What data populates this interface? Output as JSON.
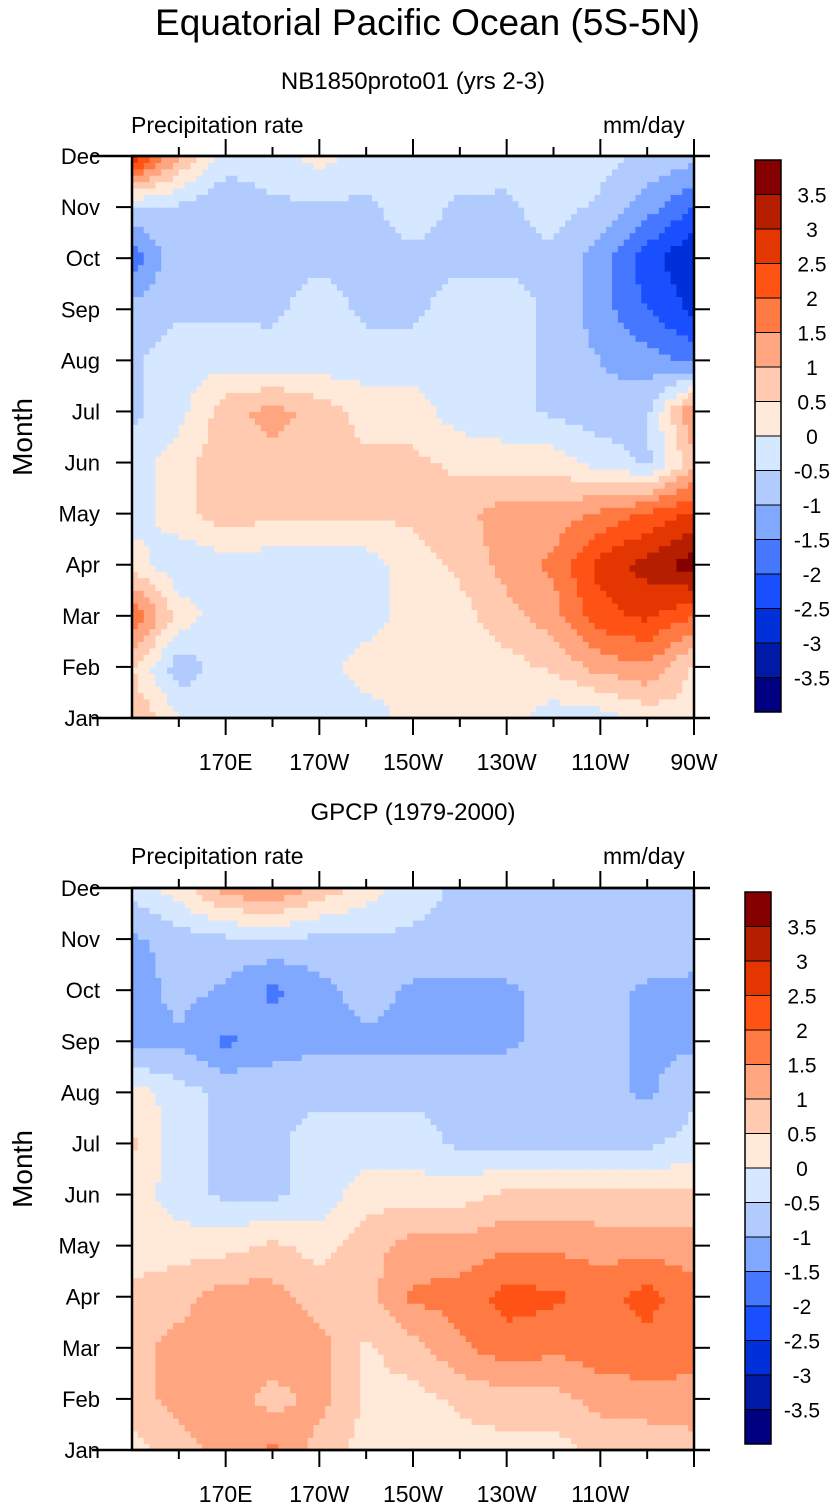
{
  "title": "Equatorial Pacific Ocean (5S-5N)",
  "chart_data": [
    {
      "type": "heatmap",
      "subtitle": "NB1850proto01 (yrs 2-3)",
      "left_label": "Precipitation rate",
      "right_label": "mm/day",
      "ylabel": "Month",
      "xlabel": "",
      "x_tick_labels": [
        "170E",
        "170W",
        "150W",
        "130W",
        "110W",
        "90W"
      ],
      "x_range_deg_east": [
        150,
        270
      ],
      "y_tick_labels": [
        "Jan",
        "Feb",
        "Mar",
        "Apr",
        "May",
        "Jun",
        "Jul",
        "Aug",
        "Sep",
        "Oct",
        "Nov",
        "Dec"
      ],
      "x_grid_lon_deg_east": [
        150,
        160,
        170,
        180,
        190,
        200,
        210,
        220,
        230,
        240,
        250,
        260,
        270
      ],
      "values": [
        [
          1.0,
          0.0,
          -0.3,
          -0.3,
          -0.3,
          -0.3,
          0.2,
          0.2,
          0.2,
          -0.3,
          -0.3,
          0.2,
          0.3
        ],
        [
          0.5,
          -0.8,
          -0.3,
          -0.3,
          -0.3,
          0.3,
          0.3,
          0.3,
          0.3,
          0.6,
          1.2,
          1.4,
          0.4
        ],
        [
          2.0,
          0.3,
          -0.3,
          -0.3,
          -0.3,
          -0.3,
          0.3,
          0.3,
          0.8,
          1.3,
          2.3,
          2.6,
          2.0
        ],
        [
          0.3,
          -0.4,
          -0.3,
          -0.3,
          -0.3,
          -0.3,
          0.3,
          0.6,
          1.2,
          1.6,
          2.7,
          3.2,
          3.8
        ],
        [
          -0.3,
          0.3,
          0.8,
          0.6,
          0.6,
          0.6,
          0.6,
          0.8,
          1.3,
          1.2,
          1.6,
          2.1,
          2.6
        ],
        [
          -0.3,
          0.3,
          0.8,
          0.8,
          0.6,
          0.6,
          0.6,
          0.4,
          0.2,
          0.3,
          -0.2,
          -0.6,
          0.8
        ],
        [
          -0.6,
          -0.2,
          0.8,
          1.2,
          0.8,
          0.3,
          0.3,
          -0.3,
          -0.3,
          -0.6,
          -0.8,
          -0.6,
          1.6
        ],
        [
          -0.6,
          -0.2,
          -0.2,
          -0.3,
          -0.3,
          -0.3,
          -0.3,
          -0.3,
          -0.3,
          -0.6,
          -1.0,
          -1.3,
          -1.6
        ],
        [
          -0.8,
          -0.6,
          -0.6,
          -0.6,
          -0.3,
          -0.6,
          -0.6,
          -0.3,
          -0.3,
          -0.6,
          -1.3,
          -2.0,
          -2.6
        ],
        [
          -1.8,
          -0.6,
          -0.6,
          -0.6,
          -0.6,
          -0.6,
          -0.6,
          -0.6,
          -0.6,
          -0.6,
          -1.3,
          -2.3,
          -3.0
        ],
        [
          -0.6,
          -0.6,
          -1.0,
          -0.6,
          -0.6,
          -0.6,
          -0.3,
          -0.6,
          -0.6,
          -0.3,
          -0.6,
          -1.3,
          -2.0
        ],
        [
          3.0,
          1.0,
          -0.2,
          -0.2,
          0.2,
          -0.2,
          -0.2,
          -0.2,
          -0.3,
          -0.3,
          -0.3,
          -0.6,
          -0.8
        ]
      ]
    },
    {
      "type": "heatmap",
      "subtitle": "GPCP (1979-2000)",
      "left_label": "Precipitation rate",
      "right_label": "mm/day",
      "ylabel": "Month",
      "xlabel": "",
      "x_tick_labels": [
        "170E",
        "170W",
        "150W",
        "130W",
        "110W"
      ],
      "x_range_deg_east": [
        150,
        270
      ],
      "y_tick_labels": [
        "Jan",
        "Feb",
        "Mar",
        "Apr",
        "May",
        "Jun",
        "Jul",
        "Aug",
        "Sep",
        "Oct",
        "Nov",
        "Dec"
      ],
      "x_grid_lon_deg_east": [
        150,
        160,
        170,
        180,
        190,
        200,
        210,
        220,
        230,
        240,
        250,
        260,
        270
      ],
      "values": [
        [
          0.3,
          0.8,
          1.2,
          1.6,
          0.8,
          0.3,
          0.3,
          0.3,
          0.3,
          0.3,
          0.6,
          0.6,
          0.7
        ],
        [
          0.8,
          1.2,
          1.3,
          0.8,
          1.2,
          0.4,
          0.3,
          0.6,
          0.8,
          0.8,
          1.2,
          1.3,
          1.4
        ],
        [
          0.8,
          1.2,
          1.3,
          1.3,
          1.2,
          0.4,
          0.8,
          1.4,
          1.8,
          1.6,
          1.8,
          1.8,
          1.6
        ],
        [
          0.6,
          0.8,
          1.3,
          1.2,
          0.8,
          0.8,
          1.6,
          1.7,
          2.2,
          2.1,
          1.8,
          2.2,
          1.7
        ],
        [
          0.3,
          0.3,
          0.3,
          0.6,
          0.3,
          0.8,
          1.2,
          1.2,
          1.4,
          1.4,
          1.3,
          1.3,
          1.2
        ],
        [
          0.3,
          -0.3,
          -0.6,
          -0.6,
          -0.3,
          0.3,
          0.3,
          0.3,
          0.6,
          0.6,
          0.6,
          0.6,
          0.6
        ],
        [
          0.6,
          -0.3,
          -0.6,
          -0.6,
          -0.3,
          -0.3,
          -0.3,
          -0.6,
          -0.6,
          -0.6,
          -0.6,
          -0.6,
          -0.3
        ],
        [
          0.3,
          -0.3,
          -0.6,
          -0.6,
          -0.6,
          -0.6,
          -0.6,
          -0.6,
          -0.6,
          -0.6,
          -0.8,
          -1.1,
          -0.6
        ],
        [
          -1.3,
          -1.1,
          -1.6,
          -1.3,
          -1.1,
          -1.1,
          -1.1,
          -1.1,
          -1.1,
          -0.8,
          -0.8,
          -1.1,
          -1.1
        ],
        [
          -1.3,
          -0.8,
          -1.1,
          -1.6,
          -1.2,
          -0.8,
          -1.1,
          -1.1,
          -1.1,
          -0.8,
          -0.8,
          -1.1,
          -1.1
        ],
        [
          -1.1,
          -0.8,
          -0.6,
          -0.6,
          -0.6,
          -0.6,
          -0.6,
          -0.6,
          -0.6,
          -0.6,
          -0.6,
          -0.6,
          -0.8
        ],
        [
          -0.3,
          0.3,
          1.2,
          1.6,
          0.8,
          0.3,
          -0.3,
          -0.6,
          -0.6,
          -0.6,
          -0.6,
          -0.6,
          -0.6
        ]
      ]
    }
  ],
  "colorbar": {
    "labels": [
      "3.5",
      "3",
      "2.5",
      "2",
      "1.5",
      "1",
      "0.5",
      "0",
      "-0.5",
      "-1",
      "-1.5",
      "-2",
      "-2.5",
      "-3",
      "-3.5"
    ],
    "levels": [
      -3.5,
      -3,
      -2.5,
      -2,
      -1.5,
      -1,
      -0.5,
      0,
      0.5,
      1,
      1.5,
      2,
      2.5,
      3,
      3.5
    ],
    "colors": [
      "#000080",
      "#0019a6",
      "#0030d9",
      "#1a4fff",
      "#4677ff",
      "#80a8ff",
      "#b2cbff",
      "#d5e8ff",
      "#ffe9d9",
      "#ffcab0",
      "#ffa680",
      "#ff7a43",
      "#ff5316",
      "#e43600",
      "#b51f00",
      "#850000"
    ]
  }
}
